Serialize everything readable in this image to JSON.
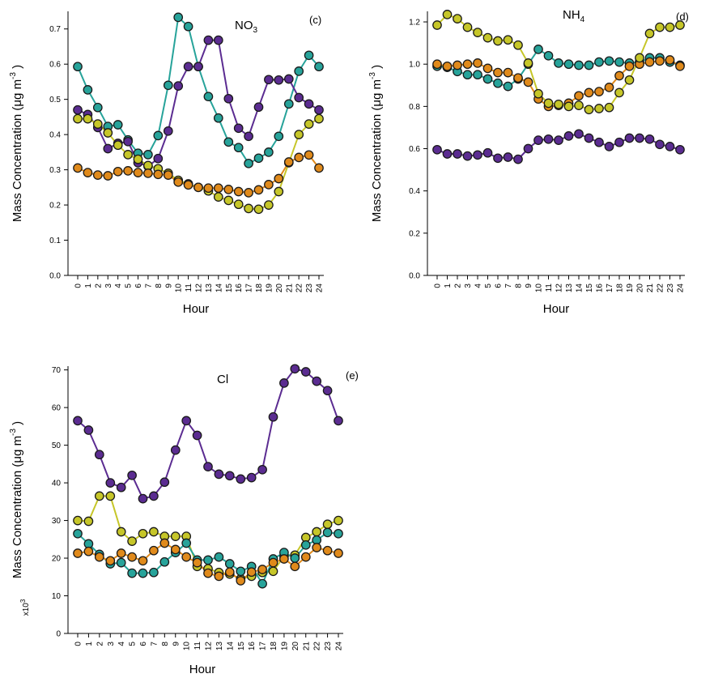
{
  "colors": {
    "purple": "#5b2c91",
    "teal": "#27a39a",
    "yellow": "#c6c629",
    "orange": "#e08a1b"
  },
  "chart_data": [
    {
      "type": "line",
      "panel": "(c)",
      "title": "NO",
      "title_sub": "3",
      "xlabel": "Hour",
      "ylabel": "Mass Concentration (μg m",
      "ylabel_sup": "-3",
      "ylabel_close": ")",
      "ylabel_prefix": "",
      "ylabel_prefix_sup": "",
      "x": [
        0,
        1,
        2,
        3,
        4,
        5,
        6,
        7,
        8,
        9,
        10,
        11,
        12,
        13,
        14,
        15,
        16,
        17,
        18,
        19,
        20,
        21,
        22,
        23,
        24
      ],
      "ylim": [
        0,
        0.75
      ],
      "yticks": [
        "0.0",
        "0.1",
        "0.2",
        "0.3",
        "0.4",
        "0.5",
        "0.6",
        "0.7"
      ],
      "ytick_values": [
        0,
        0.1,
        0.2,
        0.3,
        0.4,
        0.5,
        0.6,
        0.7
      ],
      "series": [
        {
          "color": "#27a39a",
          "values": [
            0.593,
            0.527,
            0.477,
            0.423,
            0.428,
            0.385,
            0.347,
            0.343,
            0.397,
            0.54,
            0.733,
            0.707,
            0.593,
            0.508,
            0.447,
            0.379,
            0.363,
            0.318,
            0.333,
            0.35,
            0.395,
            0.487,
            0.58,
            0.625,
            0.593
          ]
        },
        {
          "color": "#5b2c91",
          "values": [
            0.47,
            0.457,
            0.42,
            0.36,
            0.375,
            0.38,
            0.32,
            0.31,
            0.332,
            0.41,
            0.538,
            0.593,
            0.593,
            0.668,
            0.668,
            0.502,
            0.418,
            0.395,
            0.478,
            0.556,
            0.555,
            0.558,
            0.505,
            0.487,
            0.47
          ]
        },
        {
          "color": "#c6c629",
          "values": [
            0.445,
            0.445,
            0.43,
            0.405,
            0.37,
            0.343,
            0.33,
            0.312,
            0.303,
            0.29,
            0.27,
            0.26,
            0.25,
            0.24,
            0.223,
            0.213,
            0.202,
            0.19,
            0.188,
            0.2,
            0.238,
            0.32,
            0.4,
            0.43,
            0.445
          ]
        },
        {
          "color": "#e08a1b",
          "values": [
            0.305,
            0.292,
            0.285,
            0.283,
            0.295,
            0.297,
            0.292,
            0.29,
            0.287,
            0.285,
            0.265,
            0.257,
            0.25,
            0.248,
            0.248,
            0.244,
            0.238,
            0.235,
            0.243,
            0.258,
            0.275,
            0.322,
            0.335,
            0.342,
            0.305
          ]
        }
      ]
    },
    {
      "type": "line",
      "panel": "(d)",
      "title": "NH",
      "title_sub": "4",
      "xlabel": "Hour",
      "ylabel": "Mass Concentration (μg m",
      "ylabel_sup": "-3",
      "ylabel_close": ")",
      "ylabel_prefix": "",
      "ylabel_prefix_sup": "",
      "x": [
        0,
        1,
        2,
        3,
        4,
        5,
        6,
        7,
        8,
        9,
        10,
        11,
        12,
        13,
        14,
        15,
        16,
        17,
        18,
        19,
        20,
        21,
        22,
        23,
        24
      ],
      "ylim": [
        0,
        1.25
      ],
      "yticks": [
        "0.0",
        "0.2",
        "0.4",
        "0.6",
        "0.8",
        "1.0",
        "1.2"
      ],
      "ytick_values": [
        0,
        0.2,
        0.4,
        0.6,
        0.8,
        1.0,
        1.2
      ],
      "series": [
        {
          "color": "#5b2c91",
          "values": [
            0.595,
            0.575,
            0.575,
            0.565,
            0.57,
            0.58,
            0.555,
            0.56,
            0.55,
            0.6,
            0.64,
            0.645,
            0.64,
            0.66,
            0.67,
            0.65,
            0.63,
            0.61,
            0.63,
            0.65,
            0.65,
            0.645,
            0.62,
            0.61,
            0.595
          ]
        },
        {
          "color": "#27a39a",
          "values": [
            0.99,
            0.985,
            0.965,
            0.95,
            0.95,
            0.93,
            0.91,
            0.895,
            0.93,
            1.0,
            1.07,
            1.04,
            1.005,
            1.0,
            0.995,
            0.995,
            1.01,
            1.015,
            1.01,
            1.005,
            1.01,
            1.03,
            1.03,
            1.01,
            0.995
          ]
        },
        {
          "color": "#e08a1b",
          "values": [
            1.0,
            0.99,
            0.995,
            1.0,
            1.005,
            0.98,
            0.96,
            0.96,
            0.935,
            0.915,
            0.835,
            0.8,
            0.805,
            0.815,
            0.85,
            0.865,
            0.87,
            0.89,
            0.945,
            0.99,
            1.0,
            1.01,
            1.015,
            1.02,
            0.99
          ]
        },
        {
          "color": "#c6c629",
          "values": [
            1.185,
            1.235,
            1.215,
            1.175,
            1.15,
            1.125,
            1.11,
            1.115,
            1.09,
            1.005,
            0.86,
            0.815,
            0.81,
            0.8,
            0.805,
            0.785,
            0.79,
            0.795,
            0.865,
            0.925,
            1.03,
            1.145,
            1.175,
            1.175,
            1.185
          ]
        }
      ]
    },
    {
      "type": "line",
      "panel": "(e)",
      "title": "Cl",
      "title_sub": "",
      "xlabel": "Hour",
      "ylabel": "Mass Concentration (μg m",
      "ylabel_sup": "-3",
      "ylabel_close": ")",
      "ylabel_prefix": "x10",
      "ylabel_prefix_sup": "3",
      "x": [
        0,
        1,
        2,
        3,
        4,
        5,
        6,
        7,
        8,
        9,
        10,
        11,
        12,
        13,
        14,
        15,
        16,
        17,
        18,
        19,
        20,
        21,
        22,
        23,
        24
      ],
      "ylim": [
        0,
        71
      ],
      "yticks": [
        "0",
        "10",
        "20",
        "30",
        "40",
        "50",
        "60",
        "70"
      ],
      "ytick_values": [
        0,
        10,
        20,
        30,
        40,
        50,
        60,
        70
      ],
      "series": [
        {
          "color": "#5b2c91",
          "values": [
            56.5,
            54.0,
            47.5,
            40.0,
            38.8,
            42.0,
            35.8,
            36.5,
            40.2,
            48.7,
            56.5,
            52.6,
            44.3,
            42.3,
            41.9,
            41.0,
            41.4,
            43.5,
            57.5,
            66.5,
            70.3,
            69.5,
            67.0,
            64.5,
            56.5
          ]
        },
        {
          "color": "#c6c629",
          "values": [
            30.0,
            29.8,
            36.5,
            36.5,
            27.0,
            24.5,
            26.5,
            27.0,
            25.8,
            25.8,
            25.8,
            17.8,
            17.2,
            16.2,
            15.8,
            14.5,
            15.2,
            16.2,
            16.5,
            20.5,
            20.8,
            25.5,
            27.0,
            29.0,
            30.0
          ]
        },
        {
          "color": "#27a39a",
          "values": [
            26.5,
            23.8,
            21.0,
            18.5,
            18.8,
            16.0,
            16.0,
            16.2,
            19.0,
            21.5,
            24.0,
            19.5,
            19.5,
            20.3,
            18.5,
            16.5,
            17.8,
            13.2,
            19.8,
            21.5,
            20.0,
            23.5,
            24.8,
            26.8,
            26.5
          ]
        },
        {
          "color": "#e08a1b",
          "values": [
            21.3,
            21.8,
            20.3,
            19.3,
            21.3,
            20.3,
            19.3,
            22.0,
            24.0,
            22.3,
            20.3,
            18.8,
            16.0,
            15.2,
            16.3,
            14.0,
            16.3,
            17.0,
            18.8,
            19.8,
            17.8,
            20.3,
            22.8,
            22.0,
            21.3
          ]
        }
      ]
    }
  ]
}
